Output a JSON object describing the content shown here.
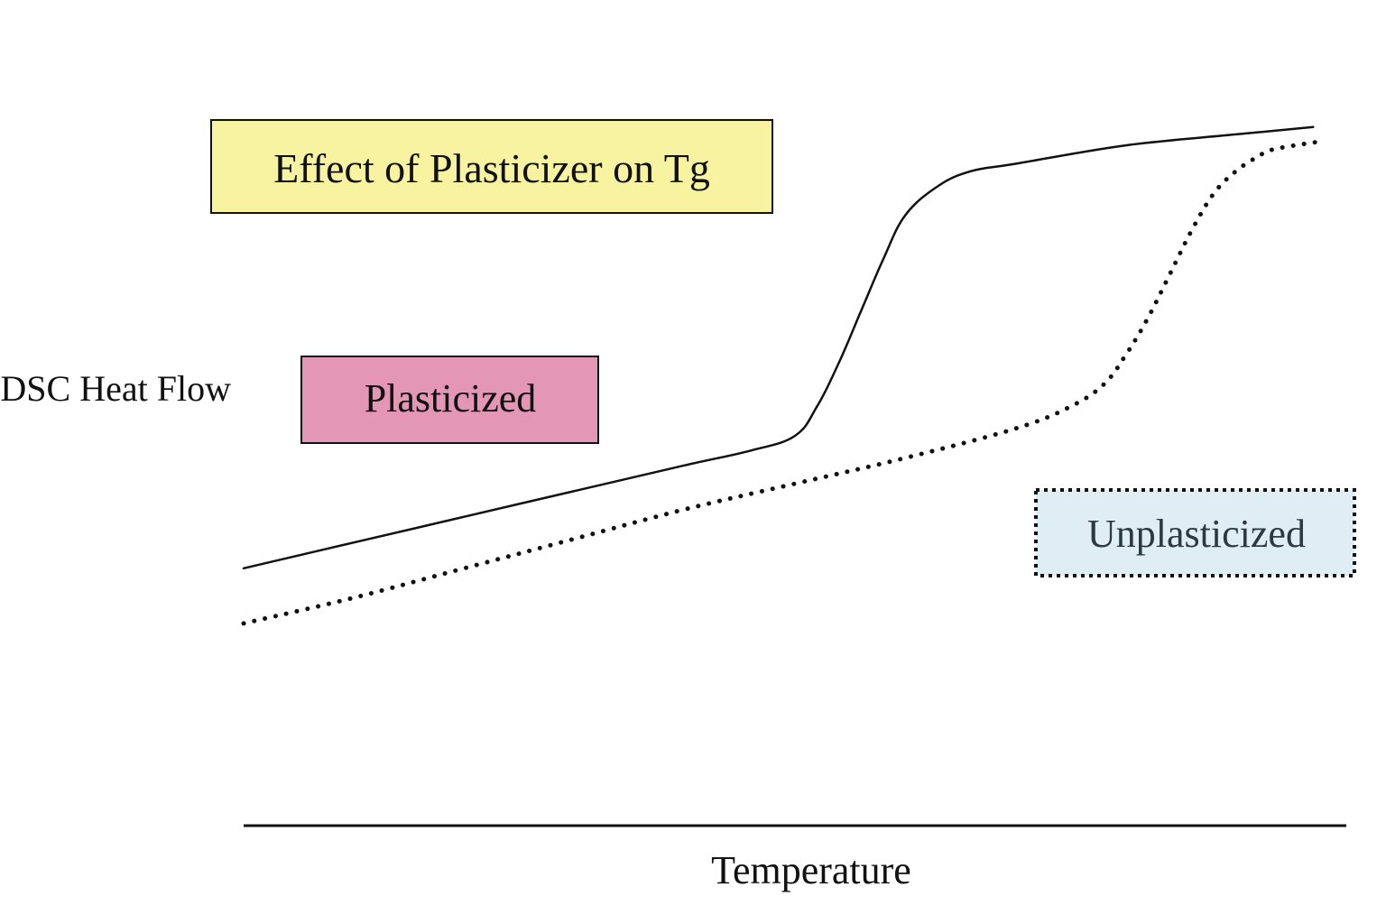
{
  "chart_data": {
    "type": "line",
    "title": "Effect of Plasticizer on Tg",
    "xlabel": "Temperature",
    "ylabel": "DSC Heat Flow",
    "xlim": [
      0,
      100
    ],
    "ylim": [
      0,
      100
    ],
    "grid": false,
    "legend_position": "inline",
    "series": [
      {
        "name": "Plasticized",
        "style": "solid",
        "color": "#111111",
        "box_color": "#e497b4",
        "x": [
          0,
          10,
          20,
          30,
          40,
          46,
          50,
          52,
          54,
          56,
          58,
          60,
          63,
          66,
          70,
          80,
          90,
          97
        ],
        "y": [
          35,
          38.5,
          42,
          45.5,
          49,
          51,
          53,
          57,
          63,
          70,
          77,
          83,
          87,
          89,
          90,
          92.5,
          94,
          95
        ]
      },
      {
        "name": "Unplasticized",
        "style": "dotted",
        "color": "#111111",
        "box_color": "#dfeef4",
        "x": [
          0,
          10,
          20,
          30,
          40,
          50,
          60,
          70,
          75,
          78,
          80,
          82,
          84,
          86,
          88,
          90,
          92,
          93.5,
          97.5
        ],
        "y": [
          27.5,
          31,
          35,
          39,
          43,
          46.5,
          50,
          54,
          57,
          60,
          64,
          69,
          75,
          81,
          86,
          89,
          91,
          92,
          93
        ]
      }
    ]
  }
}
